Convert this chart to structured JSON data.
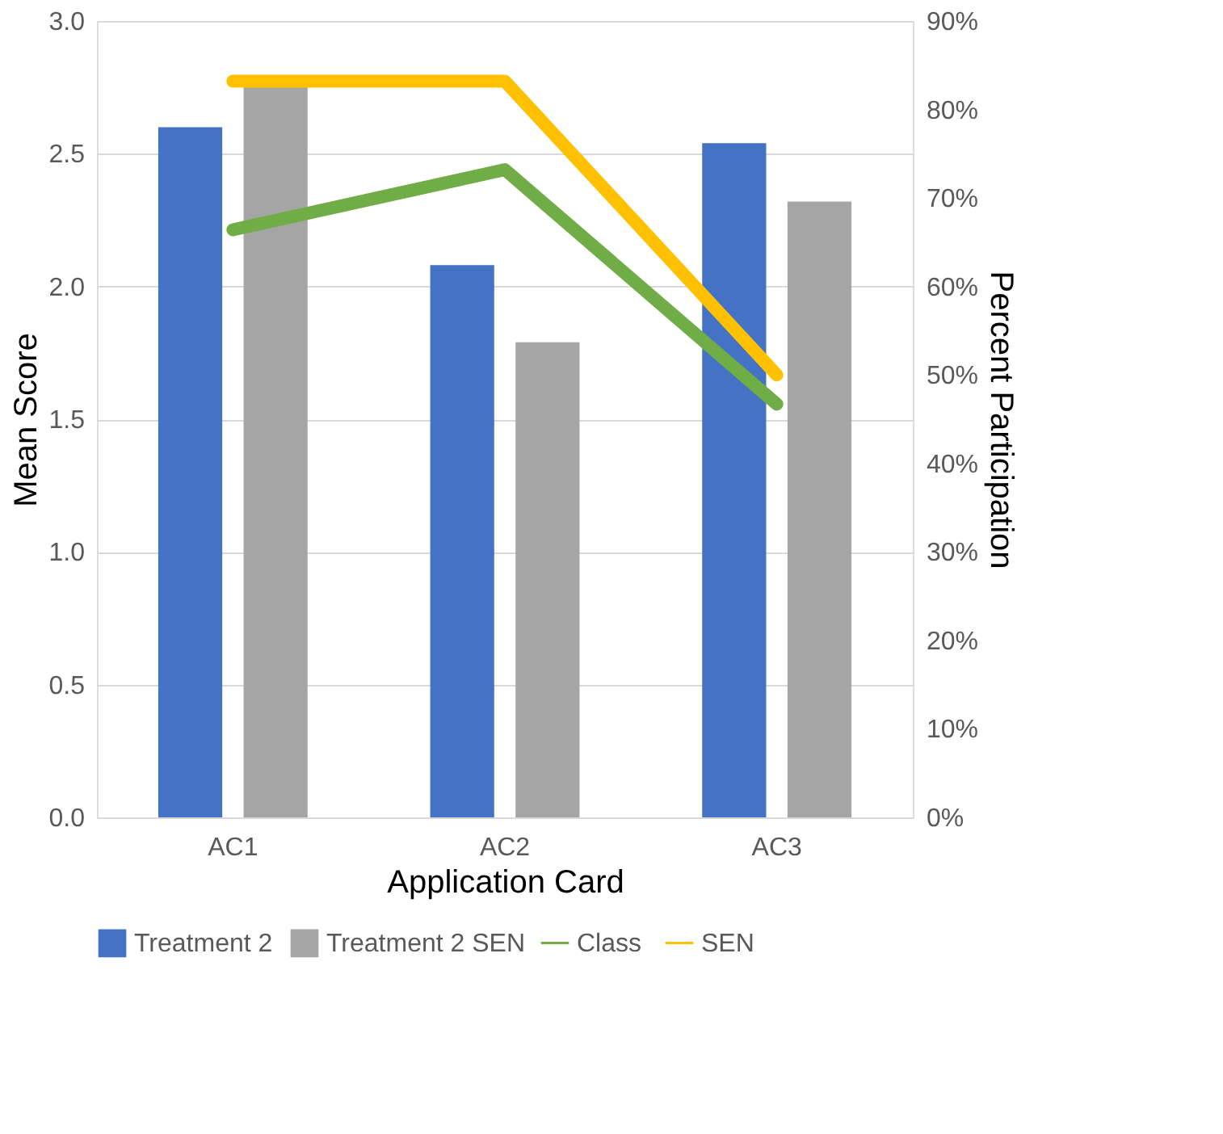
{
  "chart_data": {
    "type": "bar",
    "xlabel": "Application Card",
    "ylabel": "Mean Score",
    "y2label": "Percent Participation",
    "categories": [
      "AC1",
      "AC2",
      "AC3"
    ],
    "series": [
      {
        "name": "Treatment 2",
        "color": "#4472c4",
        "values": [
          2.6,
          2.08,
          2.54
        ]
      },
      {
        "name": "Treatment 2 SEN",
        "color": "#a5a5a5",
        "values": [
          2.76,
          1.79,
          2.32
        ]
      },
      {
        "name": "Class",
        "color": "#70ad47",
        "type": "line",
        "axis": "y2",
        "values": [
          66.4,
          73.2,
          46.7
        ]
      },
      {
        "name": "SEN",
        "color": "#ffc000",
        "type": "line",
        "axis": "y2",
        "values": [
          83.2,
          83.2,
          50
        ]
      }
    ],
    "ylim": [
      0,
      3
    ],
    "yticks": [
      {
        "value": 0,
        "label": "0.0"
      },
      {
        "value": 0.5,
        "label": "0.5"
      },
      {
        "value": 1,
        "label": "1.0"
      },
      {
        "value": 1.5,
        "label": "1.5"
      },
      {
        "value": 2,
        "label": "2.0"
      },
      {
        "value": 2.5,
        "label": "2.5"
      },
      {
        "value": 3,
        "label": "3.0"
      }
    ],
    "y2lim": [
      0,
      90
    ],
    "y2ticks": [
      {
        "value": 0,
        "label": "0%"
      },
      {
        "value": 10,
        "label": "10%"
      },
      {
        "value": 20,
        "label": "20%"
      },
      {
        "value": 30,
        "label": "30%"
      },
      {
        "value": 40,
        "label": "40%"
      },
      {
        "value": 50,
        "label": "50%"
      },
      {
        "value": 60,
        "label": "60%"
      },
      {
        "value": 70,
        "label": "70%"
      },
      {
        "value": 80,
        "label": "80%"
      },
      {
        "value": 90,
        "label": "90%"
      }
    ],
    "grid": "y",
    "legend": "bottom",
    "marker": "none",
    "line_style": "solid"
  }
}
